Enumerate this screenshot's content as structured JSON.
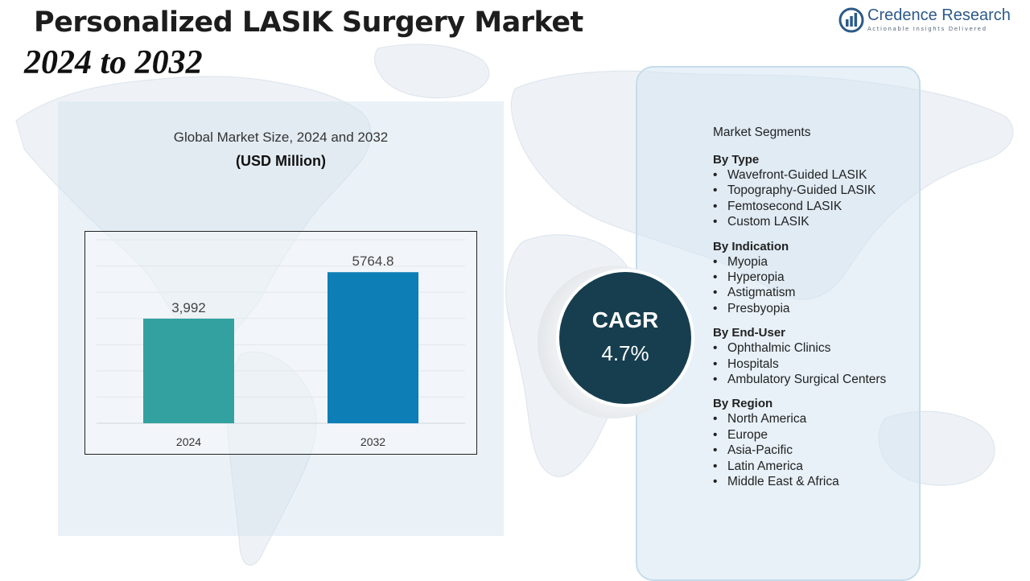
{
  "header": {
    "title": "Personalized LASIK Surgery Market",
    "subtitle": "2024 to 2032"
  },
  "logo": {
    "name": "Credence Research",
    "tagline": "Actionable Insights Delivered",
    "color": "#2d5a88"
  },
  "chart_heading": {
    "title": "Global Market Size, 2024 and 2032",
    "unit": "(USD Million)"
  },
  "chart_data": {
    "type": "bar",
    "categories": [
      "2024",
      "2032"
    ],
    "values": [
      3992,
      5764.8
    ],
    "data_labels": [
      "3,992",
      "5764.8"
    ],
    "colors": [
      "#33a19f",
      "#0d7eb6"
    ],
    "ylim": [
      0,
      7000
    ],
    "grid": true,
    "title": "Global Market Size, 2024 and 2032",
    "ylabel": "(USD Million)",
    "xlabel": ""
  },
  "cagr": {
    "label": "CAGR",
    "value": "4.7%",
    "color": "#163e4f"
  },
  "segments": {
    "title": "Market Segments",
    "groups": [
      {
        "heading": "By Type",
        "items": [
          "Wavefront-Guided LASIK",
          "Topography-Guided LASIK",
          "Femtosecond LASIK",
          "Custom LASIK"
        ]
      },
      {
        "heading": "By Indication",
        "items": [
          "Myopia",
          "Hyperopia",
          "Astigmatism",
          "Presbyopia"
        ]
      },
      {
        "heading": "By End-User",
        "items": [
          "Ophthalmic Clinics",
          "Hospitals",
          "Ambulatory Surgical Centers"
        ]
      },
      {
        "heading": "By Region",
        "items": [
          "North America",
          "Europe",
          "Asia-Pacific",
          "Latin America",
          "Middle East & Africa"
        ]
      }
    ]
  }
}
